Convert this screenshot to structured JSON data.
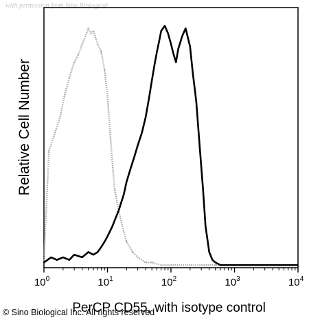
{
  "watermark": "with permission from Sino Biological",
  "copyright": "© Sino Biological Inc. All rights reserved",
  "chart_data": {
    "type": "line",
    "title": "",
    "xlabel": "PerCP CD55, with isotype control",
    "ylabel": "Relative Cell Number",
    "x_scale": "log",
    "xlim": [
      1,
      10000
    ],
    "ylim": [
      0,
      100
    ],
    "grid": false,
    "x_ticks": [
      {
        "value": 1,
        "base": "10",
        "exp": "0"
      },
      {
        "value": 10,
        "base": "10",
        "exp": "1"
      },
      {
        "value": 100,
        "base": "10",
        "exp": "2"
      },
      {
        "value": 1000,
        "base": "10",
        "exp": "3"
      },
      {
        "value": 10000,
        "base": "10",
        "exp": "4"
      }
    ],
    "series": [
      {
        "color": "#aaaaaa",
        "style": "isotype control (gray dotted)",
        "x": [
          1,
          1.2,
          1.5,
          1.8,
          2.1,
          2.5,
          3,
          3.5,
          4,
          4.5,
          5,
          5.5,
          6,
          7,
          8,
          9,
          10,
          11,
          12,
          13,
          15,
          18,
          20,
          25,
          30,
          40,
          50,
          70,
          100,
          200,
          500,
          1000,
          10000
        ],
        "y": [
          3,
          45,
          52,
          58,
          66,
          73,
          79,
          82,
          86,
          89,
          92,
          90,
          91,
          86,
          83,
          76,
          66,
          52,
          40,
          30,
          22,
          14,
          10,
          6,
          4,
          2,
          2,
          1,
          1,
          1,
          1,
          1,
          1
        ]
      },
      {
        "color": "#000000",
        "style": "PerCP CD55 (black solid)",
        "x": [
          1,
          1.3,
          1.6,
          2,
          2.5,
          3,
          4,
          5,
          6,
          7,
          8,
          9,
          10,
          12,
          15,
          18,
          20,
          23,
          26,
          30,
          35,
          40,
          45,
          50,
          55,
          60,
          65,
          70,
          80,
          90,
          100,
          110,
          120,
          130,
          150,
          170,
          200,
          220,
          250,
          280,
          320,
          350,
          400,
          450,
          500,
          600,
          800,
          1000,
          2000,
          5000,
          10000
        ],
        "y": [
          2,
          4,
          3,
          4,
          3,
          5,
          4,
          6,
          5,
          6,
          8,
          10,
          12,
          16,
          22,
          28,
          33,
          38,
          42,
          47,
          52,
          58,
          65,
          72,
          78,
          83,
          87,
          91,
          93,
          90,
          86,
          82,
          79,
          84,
          89,
          92,
          85,
          75,
          64,
          48,
          30,
          16,
          6,
          3,
          2,
          1,
          1,
          1,
          1,
          1,
          1
        ]
      }
    ]
  }
}
